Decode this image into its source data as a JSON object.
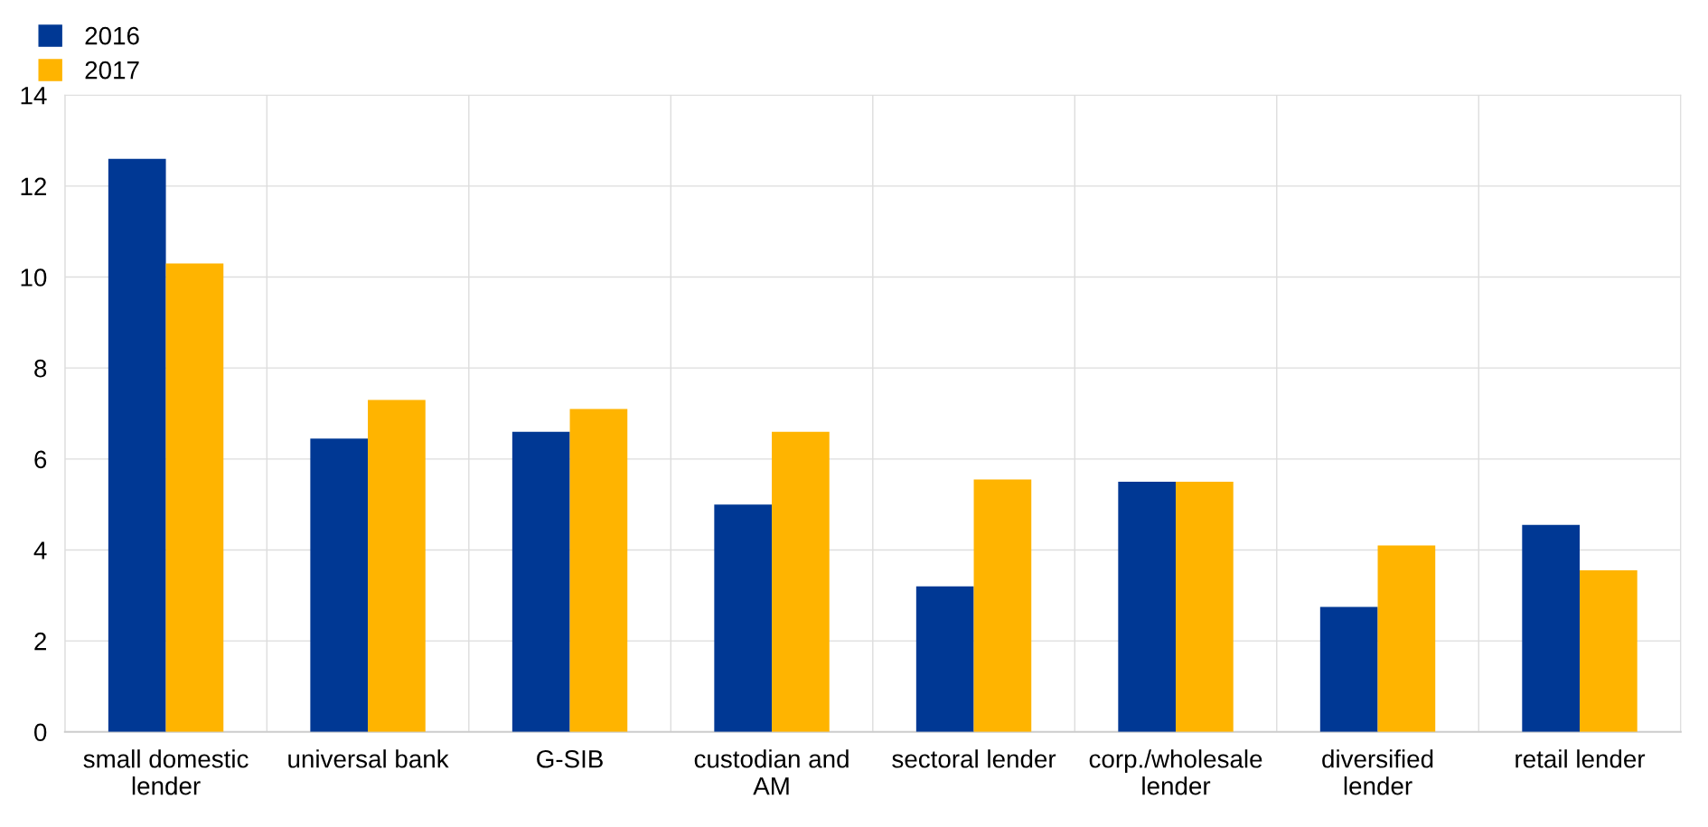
{
  "chart_data": {
    "type": "bar",
    "categories": [
      "small domestic\nlender",
      "universal bank",
      "G-SIB",
      "custodian and\nAM",
      "sectoral lender",
      "corp./wholesale\nlender",
      "diversified\nlender",
      "retail lender"
    ],
    "series": [
      {
        "name": "2016",
        "color": "#003894",
        "values": [
          12.6,
          6.45,
          6.6,
          5.0,
          3.2,
          5.5,
          2.75,
          4.55
        ]
      },
      {
        "name": "2017",
        "color": "#ffb400",
        "values": [
          10.3,
          7.3,
          7.1,
          6.6,
          5.55,
          5.5,
          4.1,
          3.55
        ]
      }
    ],
    "ylim": [
      0,
      14
    ],
    "yticks": [
      0,
      2,
      4,
      6,
      8,
      10,
      12,
      14
    ],
    "grid": true,
    "legend": "top left"
  }
}
